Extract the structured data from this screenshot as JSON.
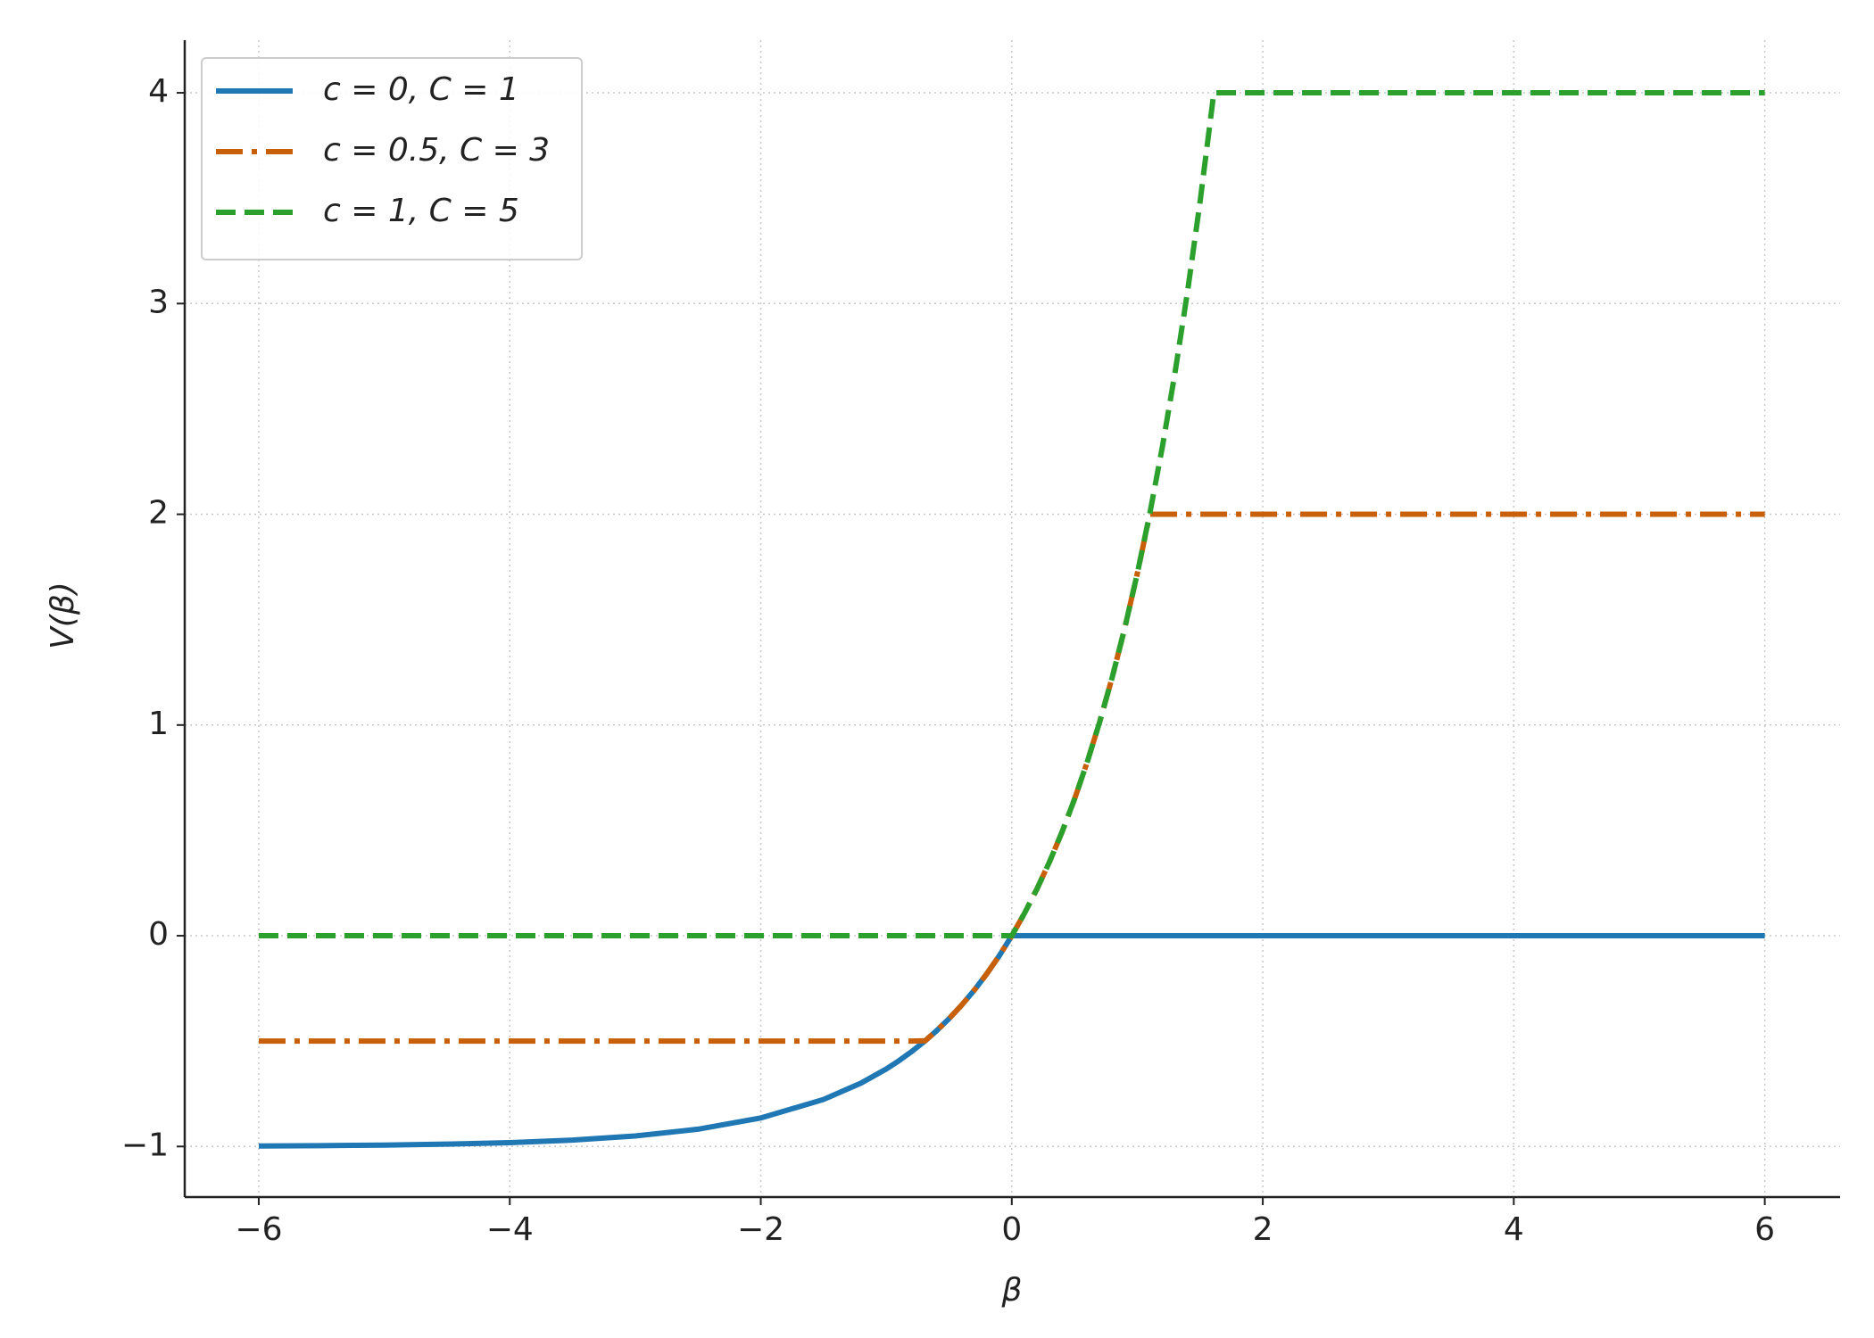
{
  "chart_data": {
    "type": "line",
    "xlabel": "β",
    "ylabel": "V(β)",
    "x": [
      -6,
      -5.5,
      -5,
      -4.5,
      -4,
      -3.5,
      -3,
      -2.5,
      -2,
      -1.5,
      -1.2,
      -1,
      -0.9,
      -0.8,
      -0.69,
      -0.6,
      -0.5,
      -0.4,
      -0.3,
      -0.2,
      -0.1,
      0,
      0.1,
      0.2,
      0.3,
      0.4,
      0.5,
      0.6,
      0.7,
      0.8,
      0.9,
      1,
      1.1,
      1.2,
      1.3,
      1.4,
      1.5,
      1.61,
      1.7,
      2,
      3,
      4,
      5,
      6
    ],
    "series": [
      {
        "name": "c = 0, C = 1",
        "color": "#1f77b4",
        "dash": "solid",
        "values": [
          -0.9975,
          -0.9959,
          -0.9933,
          -0.9889,
          -0.9817,
          -0.9698,
          -0.9502,
          -0.9179,
          -0.8647,
          -0.7769,
          -0.6988,
          -0.6321,
          -0.5934,
          -0.5507,
          -0.4984,
          -0.4512,
          -0.3935,
          -0.3297,
          -0.2592,
          -0.1813,
          -0.0952,
          0,
          0,
          0,
          0,
          0,
          0,
          0,
          0,
          0,
          0,
          0,
          0,
          0,
          0,
          0,
          0,
          0,
          0,
          0,
          0,
          0,
          0,
          0
        ]
      },
      {
        "name": "c = 0.5, C = 3",
        "color": "#c8600a",
        "dash": "dashdot",
        "values": [
          -0.5,
          -0.5,
          -0.5,
          -0.5,
          -0.5,
          -0.5,
          -0.5,
          -0.5,
          -0.5,
          -0.5,
          -0.5,
          -0.5,
          -0.5,
          -0.5,
          -0.4984,
          -0.4512,
          -0.3935,
          -0.3297,
          -0.2592,
          -0.1813,
          -0.0952,
          0,
          0.1052,
          0.2214,
          0.3499,
          0.4918,
          0.6487,
          0.8221,
          1.0138,
          1.2255,
          1.4596,
          1.7183,
          2,
          2,
          2,
          2,
          2,
          2,
          2,
          2,
          2,
          2,
          2,
          2
        ]
      },
      {
        "name": "c = 1, C = 5",
        "color": "#2ca02c",
        "dash": "dashed",
        "values": [
          0,
          0,
          0,
          0,
          0,
          0,
          0,
          0,
          0,
          0,
          0,
          0,
          0,
          0,
          0,
          0,
          0,
          0,
          0,
          0,
          0,
          0,
          0.1052,
          0.2214,
          0.3499,
          0.4918,
          0.6487,
          0.8221,
          1.0138,
          1.2255,
          1.4596,
          1.7183,
          2.0042,
          2.3201,
          2.6693,
          3.0552,
          3.4817,
          4,
          4,
          4,
          4,
          4,
          4,
          4
        ]
      }
    ],
    "xlim": [
      -6.59,
      6.6
    ],
    "ylim": [
      -1.24,
      4.25
    ],
    "xticks": [
      {
        "value": -6,
        "label": "−6"
      },
      {
        "value": -4,
        "label": "−4"
      },
      {
        "value": -2,
        "label": "−2"
      },
      0,
      2,
      4,
      6
    ],
    "yticks": [
      {
        "value": -1,
        "label": "−1"
      },
      0,
      1,
      2,
      3,
      4
    ],
    "grid": true,
    "legend": "upper left"
  }
}
